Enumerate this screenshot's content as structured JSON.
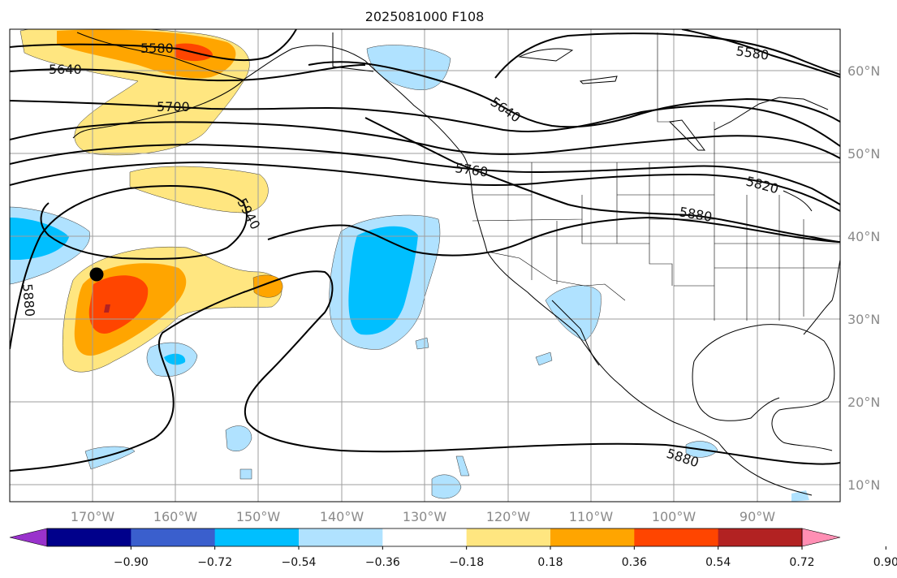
{
  "title": "2025081000 F108",
  "lon_labels": [
    "170°W",
    "160°W",
    "150°W",
    "140°W",
    "130°W",
    "120°W",
    "110°W",
    "100°W",
    "90°W"
  ],
  "lat_labels": [
    "60°N",
    "50°N",
    "40°N",
    "30°N",
    "20°N",
    "10°N"
  ],
  "contour_labels": [
    {
      "id": "c5580-a",
      "text": "5580"
    },
    {
      "id": "c5640-a",
      "text": "5640"
    },
    {
      "id": "c5700-a",
      "text": "5700"
    },
    {
      "id": "c5940",
      "text": "5940"
    },
    {
      "id": "c5880-a",
      "text": "5880"
    },
    {
      "id": "c5580-b",
      "text": "5580"
    },
    {
      "id": "c5640-b",
      "text": "5640"
    },
    {
      "id": "c5760",
      "text": "5760"
    },
    {
      "id": "c5820",
      "text": "5820"
    },
    {
      "id": "c5880-b",
      "text": "5880"
    },
    {
      "id": "c5880-c",
      "text": "5880"
    }
  ],
  "colorbar": {
    "ticks": [
      "−0.90",
      "−0.72",
      "−0.54",
      "−0.36",
      "−0.18",
      "0.18",
      "0.36",
      "0.54",
      "0.72",
      "0.90"
    ],
    "colors": [
      "#9932cc",
      "#00008b",
      "#3a5fcd",
      "#00bfff",
      "#b0e2ff",
      "#ffffff",
      "#ffe680",
      "#ffa500",
      "#ff4500",
      "#b22222",
      "#ff8fb4"
    ]
  },
  "marker": {
    "lon": -169.5,
    "lat": 35.5
  }
}
